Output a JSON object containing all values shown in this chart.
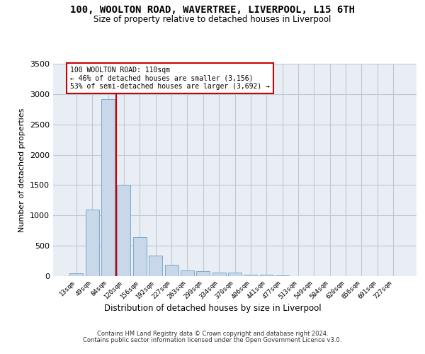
{
  "title_line1": "100, WOOLTON ROAD, WAVERTREE, LIVERPOOL, L15 6TH",
  "title_line2": "Size of property relative to detached houses in Liverpool",
  "xlabel": "Distribution of detached houses by size in Liverpool",
  "ylabel": "Number of detached properties",
  "footer_line1": "Contains HM Land Registry data © Crown copyright and database right 2024.",
  "footer_line2": "Contains public sector information licensed under the Open Government Licence v3.0.",
  "annotation_line1": "100 WOOLTON ROAD: 110sqm",
  "annotation_line2": "← 46% of detached houses are smaller (3,156)",
  "annotation_line3": "53% of semi-detached houses are larger (3,692) →",
  "bar_labels": [
    "13sqm",
    "49sqm",
    "84sqm",
    "120sqm",
    "156sqm",
    "192sqm",
    "227sqm",
    "263sqm",
    "299sqm",
    "334sqm",
    "370sqm",
    "406sqm",
    "441sqm",
    "477sqm",
    "513sqm",
    "549sqm",
    "584sqm",
    "620sqm",
    "656sqm",
    "691sqm",
    "727sqm"
  ],
  "bar_values": [
    50,
    1100,
    2920,
    1500,
    640,
    340,
    185,
    90,
    85,
    60,
    55,
    25,
    25,
    10,
    5,
    5,
    5,
    0,
    0,
    0,
    0
  ],
  "bar_color": "#c8d8ea",
  "bar_edge_color": "#7aaac8",
  "vline_color": "#cc0000",
  "vline_pos": 2.5,
  "ylim": [
    0,
    3500
  ],
  "yticks": [
    0,
    500,
    1000,
    1500,
    2000,
    2500,
    3000,
    3500
  ],
  "grid_color": "#c0c8d4",
  "bg_color": "#e8eef4",
  "annotation_box_edgecolor": "#cc0000",
  "fig_width": 6.0,
  "fig_height": 5.0,
  "dpi": 100
}
